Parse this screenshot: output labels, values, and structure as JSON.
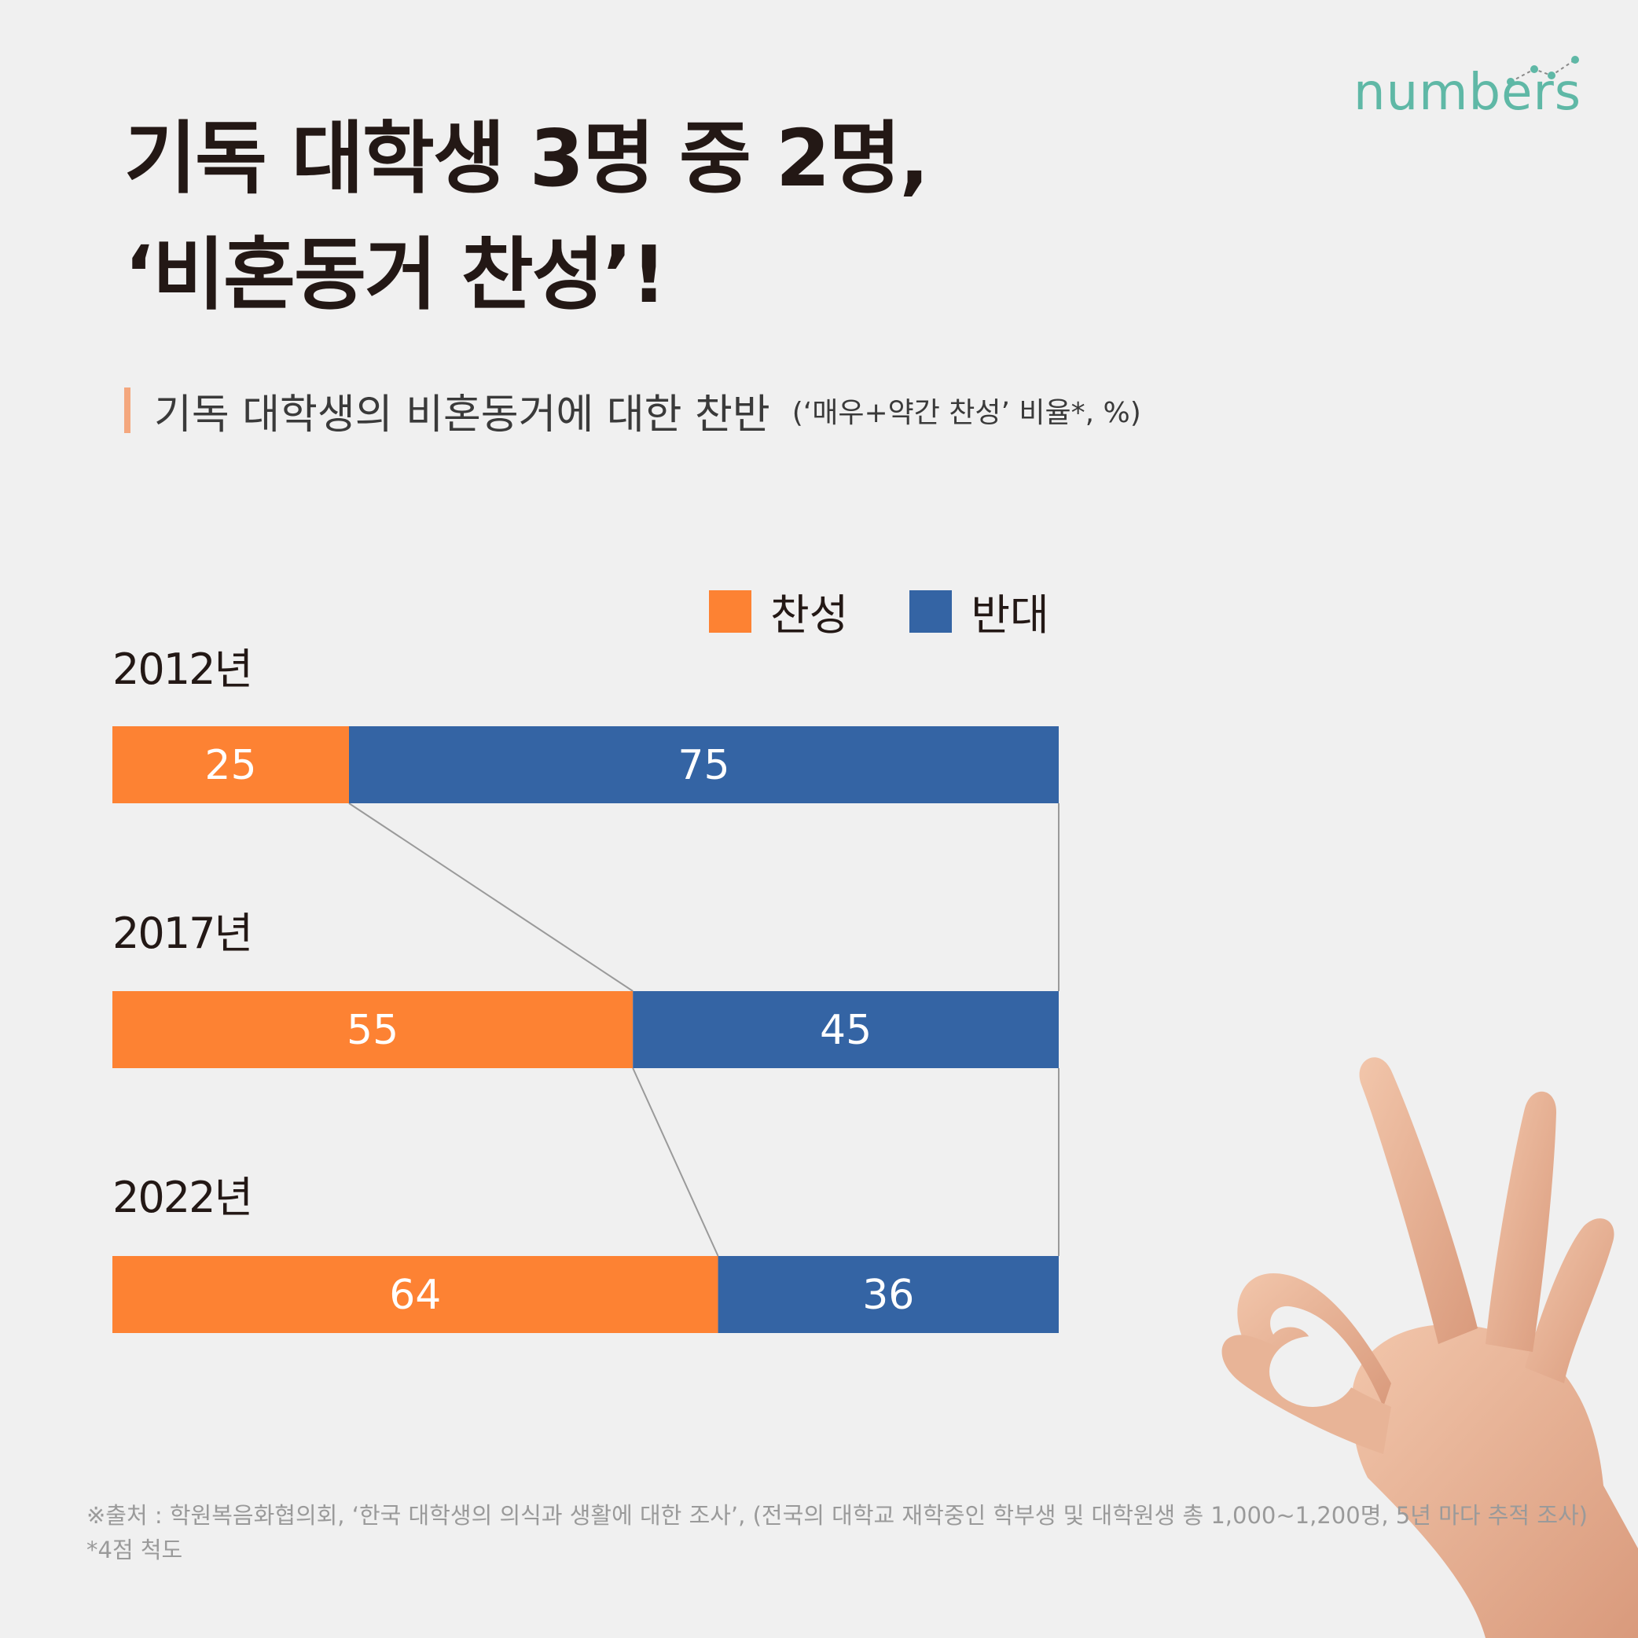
{
  "brand": {
    "logo_text": "numbers",
    "accent": "#5fb8a6"
  },
  "title": {
    "line1": "기독 대학생 3명 중 2명,",
    "line2": "‘비혼동거 찬성’!"
  },
  "subtitle": {
    "main": "기독 대학생의 비혼동거에 대한 찬반",
    "note": "(‘매우+약간 찬성’ 비율*, %)"
  },
  "legend": [
    {
      "label": "찬성",
      "color": "#fd8233"
    },
    {
      "label": "반대",
      "color": "#3464a4"
    }
  ],
  "chart_data": {
    "type": "bar",
    "stacked": true,
    "orientation": "horizontal",
    "categories": [
      "2012년",
      "2017년",
      "2022년"
    ],
    "series": [
      {
        "name": "찬성",
        "values": [
          25,
          55,
          64
        ],
        "color": "#fd8233"
      },
      {
        "name": "반대",
        "values": [
          75,
          45,
          36
        ],
        "color": "#3464a4"
      }
    ],
    "xlim": [
      0,
      100
    ],
    "connector_lines": true
  },
  "footer": {
    "source": "※출처 : 학원복음화협의회, ‘한국 대학생의 의식과 생활에 대한 조사’, (전국의 대학교 재학중인 학부생 및 대학원생 총 1,000~1,200명, 5년 마다 추적 조사)",
    "scale_note": "*4점 척도"
  }
}
